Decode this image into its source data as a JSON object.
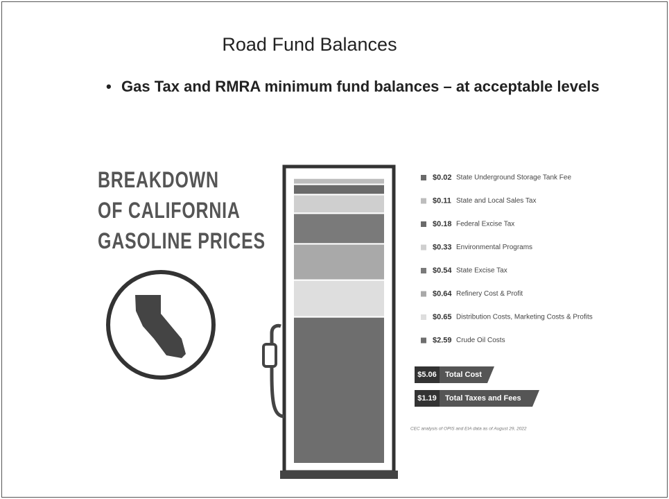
{
  "slide": {
    "title": "Road Fund Balances",
    "bullet": "Gas Tax and RMRA minimum fund balances – at acceptable levels"
  },
  "chart_data": {
    "type": "stacked-pump",
    "title_lines": [
      "BREAKDOWN",
      "OF CALIFORNIA",
      "GASOLINE PRICES"
    ],
    "categories": [
      "State Underground Storage Tank Fee",
      "State and Local Sales Tax",
      "Federal Excise Tax",
      "Environmental Programs",
      "State Excise Tax",
      "Refinery Cost & Profit",
      "Distribution Costs, Marketing Costs & Profits",
      "Crude Oil Costs"
    ],
    "values": [
      0.02,
      0.11,
      0.18,
      0.33,
      0.54,
      0.64,
      0.65,
      2.59
    ],
    "value_labels": [
      "$0.02",
      "$0.11",
      "$0.18",
      "$0.33",
      "$0.54",
      "$0.64",
      "$0.65",
      "$2.59"
    ],
    "colors": [
      "#6a6a6a",
      "#bdbdbd",
      "#6a6a6a",
      "#cfcfcf",
      "#7a7a7a",
      "#a9a9a9",
      "#dedede",
      "#6e6e6e"
    ],
    "totals": [
      {
        "name": "Total Cost",
        "value": 5.06,
        "value_label": "$5.06"
      },
      {
        "name": "Total Taxes and Fees",
        "value": 1.19,
        "value_label": "$1.19"
      }
    ],
    "source": "CEC analysis of OPIS and EIA data as of August 29, 2022"
  }
}
